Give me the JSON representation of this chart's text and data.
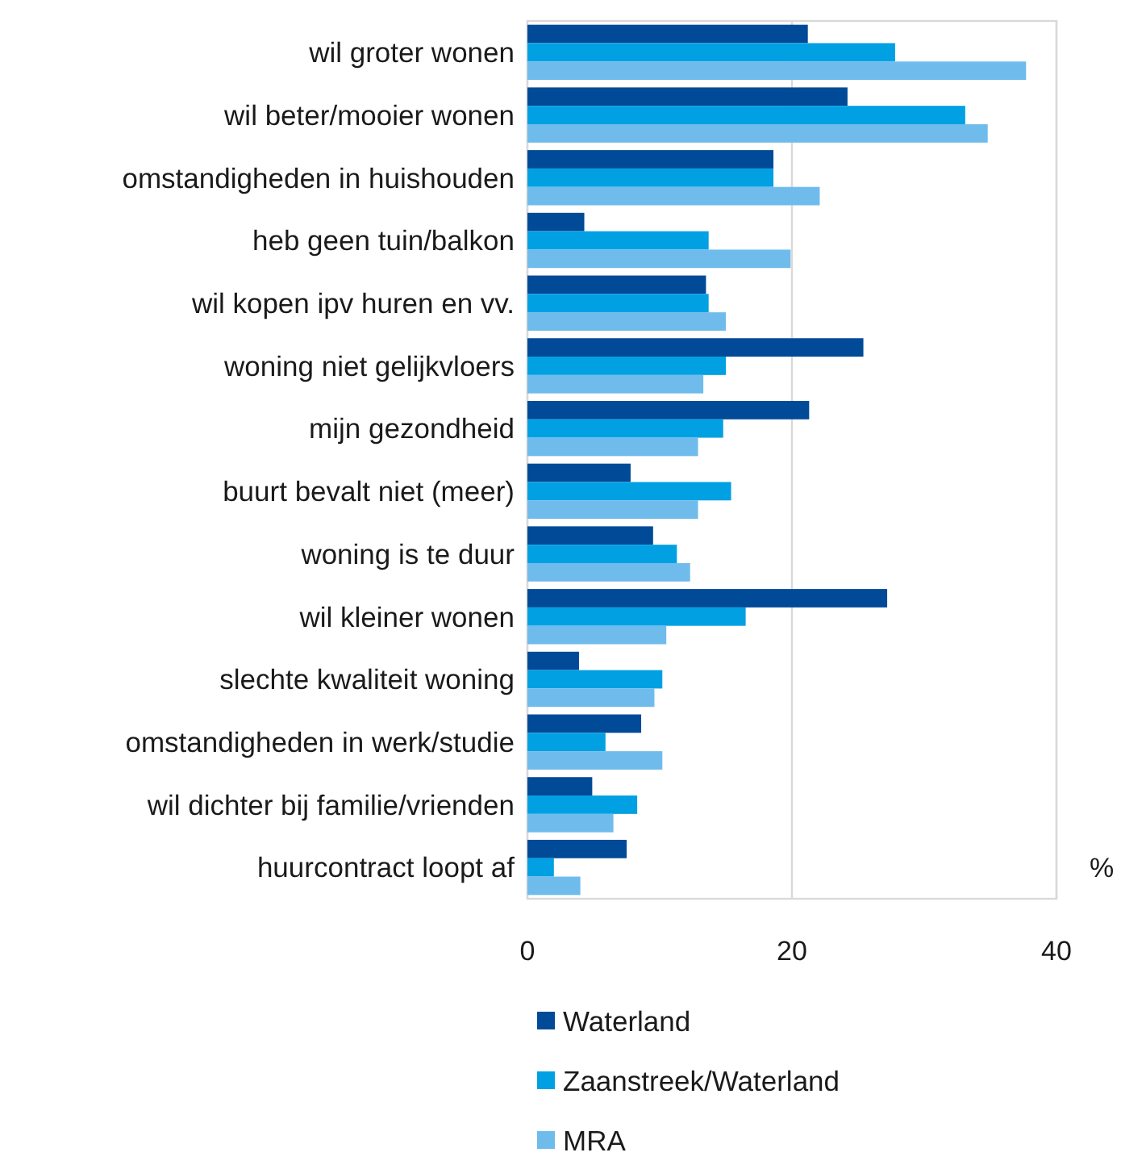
{
  "chart_data": {
    "type": "bar",
    "orientation": "horizontal",
    "xlabel": "%",
    "categories": [
      "wil groter wonen",
      "wil beter/mooier wonen",
      "omstandigheden in huishouden",
      "heb geen tuin/balkon",
      "wil kopen ipv huren en vv.",
      "woning niet gelijkvloers",
      "mijn gezondheid",
      "buurt bevalt niet (meer)",
      "woning is te duur",
      "wil kleiner wonen",
      "slechte kwaliteit woning",
      "omstandigheden in werk/studie",
      "wil dichter bij familie/vrienden",
      "huurcontract loopt af"
    ],
    "series": [
      {
        "name": "Waterland",
        "color": "#004a97",
        "values": [
          21.2,
          24.2,
          18.6,
          4.3,
          13.5,
          25.4,
          21.3,
          7.8,
          9.5,
          27.2,
          3.9,
          8.6,
          4.9,
          7.5
        ]
      },
      {
        "name": "Zaanstreek/Waterland",
        "color": "#00a0e3",
        "values": [
          27.8,
          33.1,
          18.6,
          13.7,
          13.7,
          15.0,
          14.8,
          15.4,
          11.3,
          16.5,
          10.2,
          5.9,
          8.3,
          2.0
        ]
      },
      {
        "name": "MRA",
        "color": "#6fbcec",
        "values": [
          37.7,
          34.8,
          22.1,
          19.9,
          15.0,
          13.3,
          12.9,
          12.9,
          12.3,
          10.5,
          9.6,
          10.2,
          6.5,
          4.0
        ]
      }
    ],
    "xlim": [
      0,
      40
    ],
    "xticks": [
      0,
      20,
      40
    ],
    "grid": "x",
    "legend": "bottom"
  }
}
